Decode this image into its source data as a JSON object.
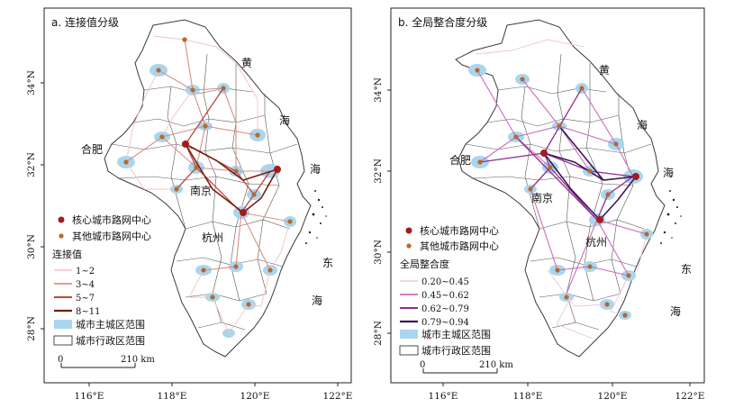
{
  "panels": {
    "a": {
      "title": "a. 连接值分级",
      "legend_title": "连接值",
      "classes": [
        "1~2",
        "3~4",
        "5~7",
        "8~11"
      ],
      "class_colors": [
        "#f2c3c0",
        "#dc8e85",
        "#b8493d",
        "#7a1a12"
      ]
    },
    "b": {
      "title": "b. 全局整合度分级",
      "legend_title": "全局整合度",
      "classes": [
        "0.20~0.45",
        "0.45~0.62",
        "0.62~0.79",
        "0.79~0.94"
      ],
      "class_colors": [
        "#efc4e2",
        "#cc6cbd",
        "#8e2c8e",
        "#3d1556"
      ]
    }
  },
  "legend": {
    "core_center": "核心城市路网中心",
    "other_center": "其他城市路网中心",
    "urban_area": "城市主城区范围",
    "admin_area": "城市行政区范围"
  },
  "scale_bar": {
    "zero": "0",
    "distance": "210 km"
  },
  "axes": {
    "x_ticks": [
      "116°E",
      "118°E",
      "120°E",
      "122°E"
    ],
    "y_ticks": [
      "34°N",
      "32°N",
      "30°N",
      "28°N"
    ]
  },
  "place_labels": {
    "hefei": "合肥",
    "nanjing": "南京",
    "hangzhou": "杭州",
    "huang": "黄",
    "hai": "海",
    "dong": "东"
  },
  "colors": {
    "core_center": "#a31c1c",
    "other_center": "#b6692c",
    "urban_area": "#a9d6ee",
    "boundary": "#3a3a3a"
  }
}
